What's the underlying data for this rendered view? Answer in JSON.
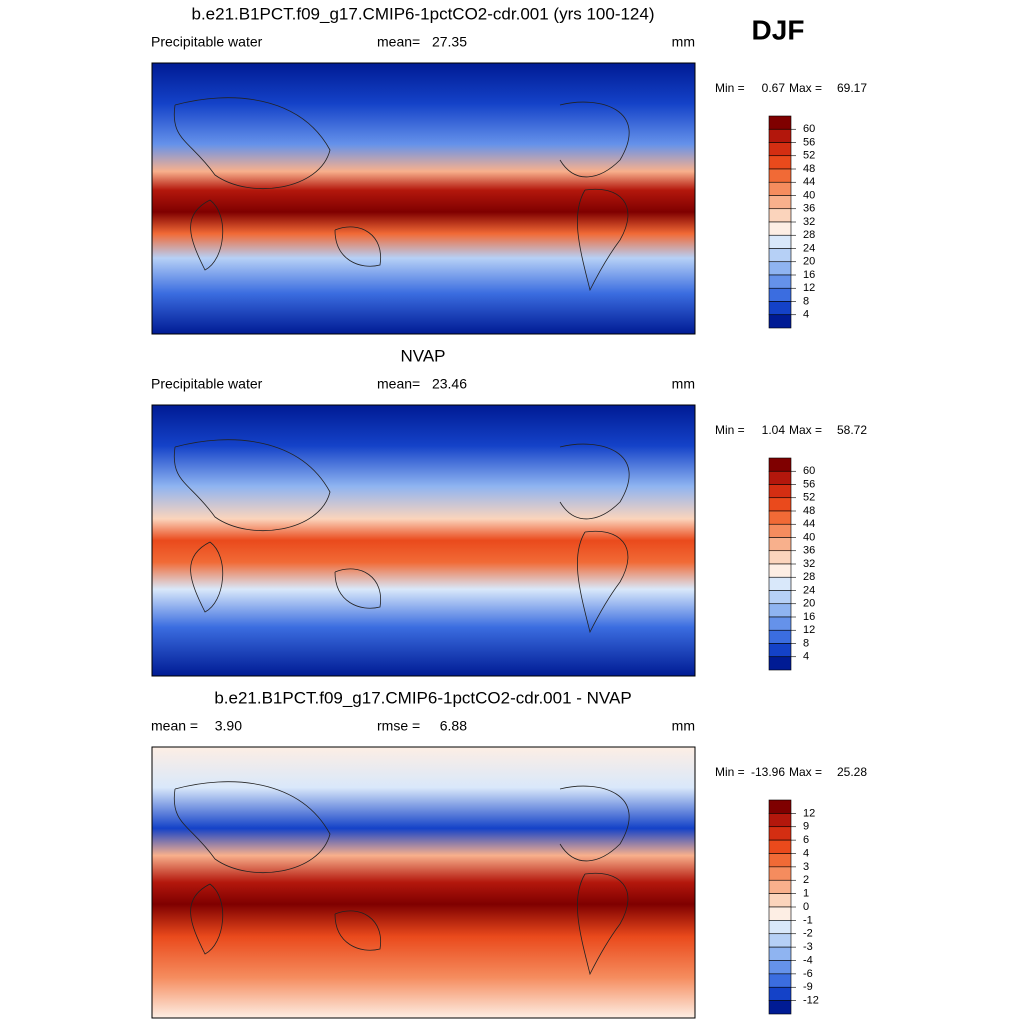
{
  "figure_label": "DJF",
  "panels": [
    {
      "title": "b.e21.B1PCT.f09_g17.CMIP6-1pctCO2-cdr.001 (yrs 100-124)",
      "left_label": "Precipitable water",
      "center_label": "mean=",
      "center_value": 27.35,
      "units": "mm",
      "min_label": "Min =",
      "min": 0.67,
      "max_label": "Max =",
      "max": 69.17,
      "levels": [
        60,
        56,
        52,
        48,
        44,
        40,
        36,
        32,
        28,
        24,
        20,
        16,
        12,
        8,
        4
      ],
      "colors": [
        "#7f0000",
        "#b3170c",
        "#d42e12",
        "#ea4a1c",
        "#f16a36",
        "#f58c5e",
        "#f8b08c",
        "#fbd4bc",
        "#fdeee4",
        "#d9e8fa",
        "#b6d0f6",
        "#8fb4f1",
        "#6592ea",
        "#3b6de0",
        "#1442c8",
        "#001b94"
      ]
    },
    {
      "title": "NVAP",
      "left_label": "Precipitable water",
      "center_label": "mean=",
      "center_value": 23.46,
      "units": "mm",
      "min_label": "Min =",
      "min": 1.04,
      "max_label": "Max =",
      "max": 58.72,
      "levels": [
        60,
        56,
        52,
        48,
        44,
        40,
        36,
        32,
        28,
        24,
        20,
        16,
        12,
        8,
        4
      ],
      "colors": [
        "#7f0000",
        "#b3170c",
        "#d42e12",
        "#ea4a1c",
        "#f16a36",
        "#f58c5e",
        "#f8b08c",
        "#fbd4bc",
        "#fdeee4",
        "#d9e8fa",
        "#b6d0f6",
        "#8fb4f1",
        "#6592ea",
        "#3b6de0",
        "#1442c8",
        "#001b94"
      ]
    },
    {
      "title": "b.e21.B1PCT.f09_g17.CMIP6-1pctCO2-cdr.001 - NVAP",
      "left_label": "mean =",
      "left_value": {
        "value": 3.9,
        "label": "3.90"
      },
      "center_label": "rmse =",
      "center_value": 6.88,
      "units": "mm",
      "min_label": "Min =",
      "min": -13.96,
      "max_label": "Max =",
      "max": 25.28,
      "levels": [
        12,
        9,
        6,
        4,
        3,
        2,
        1,
        0,
        -1,
        -2,
        -3,
        -4,
        -6,
        -9,
        -12
      ],
      "colors": [
        "#7f0000",
        "#b3170c",
        "#d42e12",
        "#ea4a1c",
        "#f16a36",
        "#f58c5e",
        "#f8b08c",
        "#fbd4bc",
        "#fdeee4",
        "#d9e8fa",
        "#b6d0f6",
        "#8fb4f1",
        "#6592ea",
        "#3b6de0",
        "#1442c8",
        "#001b94"
      ]
    }
  ]
}
